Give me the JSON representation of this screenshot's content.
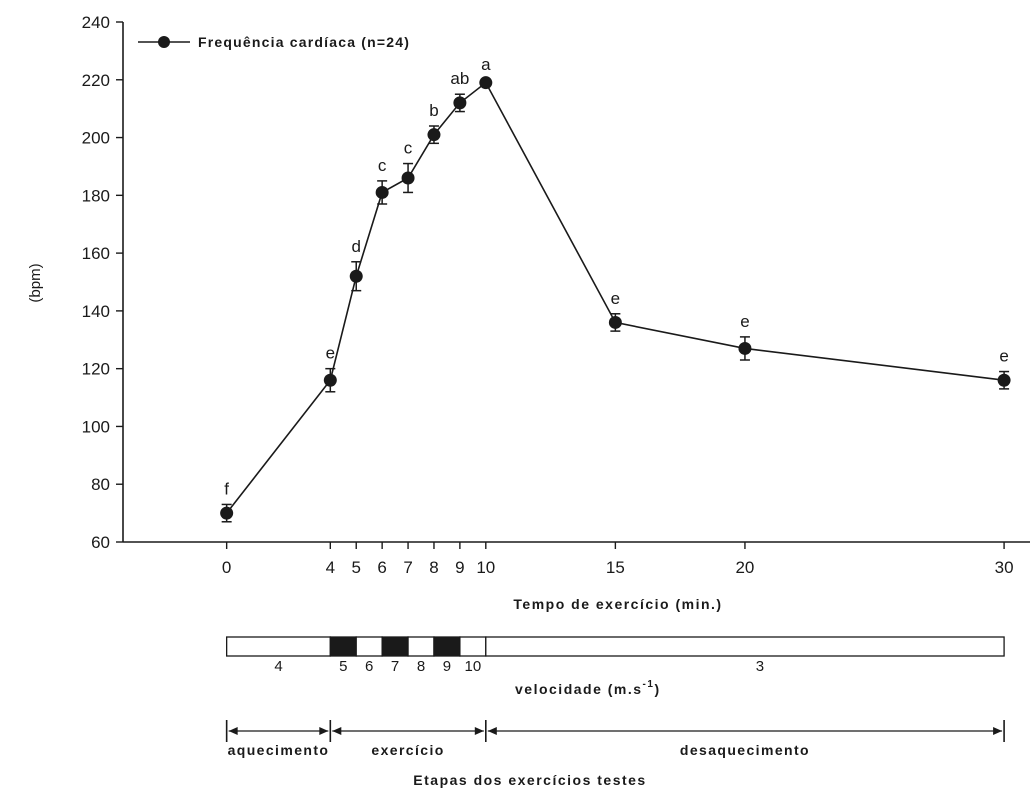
{
  "chart_data": {
    "type": "line",
    "legend": {
      "label": "Frequência cardíaca (n=24)",
      "placement": "top-left"
    },
    "ylabel": "(bpm)",
    "xlabel": "Tempo de exercício (min.)",
    "ylim": [
      60,
      240
    ],
    "yticks": [
      60,
      80,
      100,
      120,
      140,
      160,
      180,
      200,
      220,
      240
    ],
    "xlim": [
      -4,
      31
    ],
    "xticks": [
      0,
      4,
      5,
      6,
      7,
      8,
      9,
      10,
      15,
      20,
      30
    ],
    "grid": false,
    "series": [
      {
        "name": "Frequência cardíaca (n=24)",
        "points": [
          {
            "x": 0,
            "y": 70,
            "err": 3,
            "label": "f"
          },
          {
            "x": 4,
            "y": 116,
            "err": 4,
            "label": "e"
          },
          {
            "x": 5,
            "y": 152,
            "err": 5,
            "label": "d"
          },
          {
            "x": 6,
            "y": 181,
            "err": 4,
            "label": "c"
          },
          {
            "x": 7,
            "y": 186,
            "err": 5,
            "label": "c"
          },
          {
            "x": 8,
            "y": 201,
            "err": 3,
            "label": "b"
          },
          {
            "x": 9,
            "y": 212,
            "err": 3,
            "label": "ab"
          },
          {
            "x": 10,
            "y": 219,
            "err": 1,
            "label": "a"
          },
          {
            "x": 15,
            "y": 136,
            "err": 3,
            "label": "e"
          },
          {
            "x": 20,
            "y": 127,
            "err": 4,
            "label": "e"
          },
          {
            "x": 30,
            "y": 116,
            "err": 3,
            "label": "e"
          }
        ]
      }
    ],
    "speed_bar": {
      "title_text": "velocidade (m.s",
      "title_sup": "-1",
      "title_close": ")",
      "segments": [
        {
          "label": "4",
          "from": 0,
          "to": 4,
          "filled": false
        },
        {
          "label": "5",
          "from": 4,
          "to": 5,
          "filled": true
        },
        {
          "label": "6",
          "from": 5,
          "to": 6,
          "filled": false
        },
        {
          "label": "7",
          "from": 6,
          "to": 7,
          "filled": true
        },
        {
          "label": "8",
          "from": 7,
          "to": 8,
          "filled": false
        },
        {
          "label": "9",
          "from": 8,
          "to": 9,
          "filled": true
        },
        {
          "label": "10",
          "from": 9,
          "to": 10,
          "filled": false
        },
        {
          "label": "3",
          "from": 10,
          "to": 30,
          "filled": false
        }
      ]
    },
    "phases": {
      "title": "Etapas dos exercícios testes",
      "items": [
        {
          "label": "aquecimento",
          "from": 0,
          "to": 4
        },
        {
          "label": "exercício",
          "from": 4,
          "to": 10
        },
        {
          "label": "desaquecimento",
          "from": 10,
          "to": 30
        }
      ]
    }
  },
  "colors": {
    "ink": "#1a1a1a",
    "background": "#ffffff"
  }
}
